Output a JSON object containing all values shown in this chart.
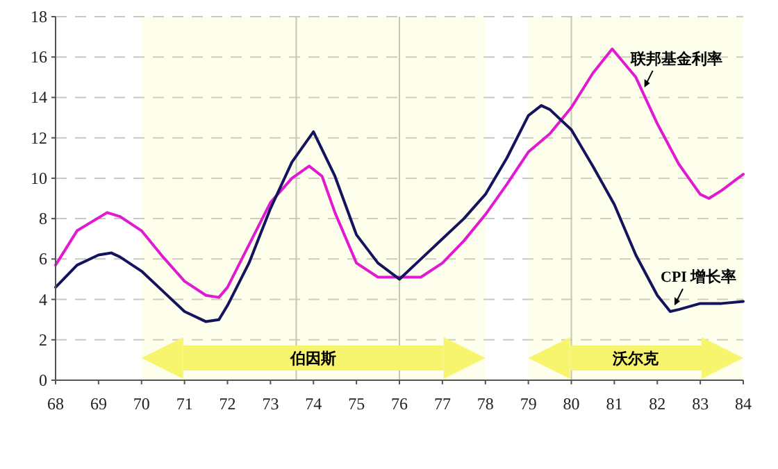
{
  "chart_data": {
    "type": "line",
    "series": [
      {
        "color": "#e01ad0",
        "x": [
          68,
          68.5,
          69.2,
          69.5,
          70,
          70.5,
          71,
          71.5,
          71.8,
          72,
          72.5,
          73,
          73.5,
          73.9,
          74.2,
          74.5,
          75,
          75.5,
          76,
          76.5,
          77,
          77.5,
          78,
          78.5,
          79,
          79.5,
          80,
          80.5,
          80.95,
          81.5,
          82,
          82.5,
          83,
          83.2,
          83.5,
          84
        ],
        "values": [
          5.7,
          7.4,
          8.3,
          8.1,
          7.4,
          6.1,
          4.9,
          4.2,
          4.1,
          4.6,
          6.7,
          8.8,
          10,
          10.6,
          10.1,
          8.3,
          5.8,
          5.1,
          5.1,
          5.1,
          5.8,
          6.9,
          8.2,
          9.7,
          11.3,
          12.2,
          13.5,
          15.2,
          16.4,
          15,
          12.7,
          10.7,
          9.2,
          9,
          9.4,
          10.2
        ]
      },
      {
        "color": "#14145e",
        "x": [
          68,
          68.5,
          69,
          69.3,
          69.5,
          70,
          70.5,
          71,
          71.5,
          71.8,
          72,
          72.5,
          73,
          73.5,
          74,
          74.5,
          75,
          75.5,
          76,
          76.5,
          77,
          77.5,
          78,
          78.5,
          79,
          79.3,
          79.5,
          80,
          80.5,
          81,
          81.5,
          82,
          82.3,
          82.5,
          83,
          83.5,
          84
        ],
        "values": [
          4.6,
          5.7,
          6.2,
          6.3,
          6.1,
          5.4,
          4.4,
          3.4,
          2.9,
          3,
          3.7,
          5.8,
          8.5,
          10.8,
          12.3,
          10.1,
          7.2,
          5.8,
          5,
          6,
          7,
          8,
          9.2,
          11,
          13.1,
          13.6,
          13.4,
          12.4,
          10.6,
          8.7,
          6.2,
          4.2,
          3.4,
          3.5,
          3.8,
          3.8,
          3.9
        ]
      }
    ],
    "xlim": [
      68,
      84
    ],
    "xticks": [
      68,
      69,
      70,
      71,
      72,
      73,
      74,
      75,
      76,
      77,
      78,
      79,
      80,
      81,
      82,
      83,
      84
    ],
    "ylim": [
      0,
      18
    ],
    "yticks": [
      0,
      2,
      4,
      6,
      8,
      10,
      12,
      14,
      16,
      18
    ],
    "grid": "y",
    "line_style": "solid",
    "marker": "none",
    "ref_lines": [
      {
        "axis": "x",
        "value": 73.6,
        "color": "#c0c0c0"
      },
      {
        "axis": "x",
        "value": 76,
        "color": "#c0c0c0"
      },
      {
        "axis": "x",
        "value": 80,
        "color": "#c0c0c0"
      }
    ],
    "bands": [
      {
        "axis": "x",
        "from": 70,
        "to": 78,
        "label": "伯因斯",
        "color": "#f7f56e"
      },
      {
        "axis": "x",
        "from": 79,
        "to": 84,
        "label": "沃尔克",
        "color": "#f7f56e"
      }
    ],
    "annotations": [
      {
        "text": "联邦基金利率",
        "x": 81.7,
        "y": 14.5
      },
      {
        "text": "CPI 增长率",
        "x": 82.4,
        "y": 3.7
      }
    ]
  }
}
